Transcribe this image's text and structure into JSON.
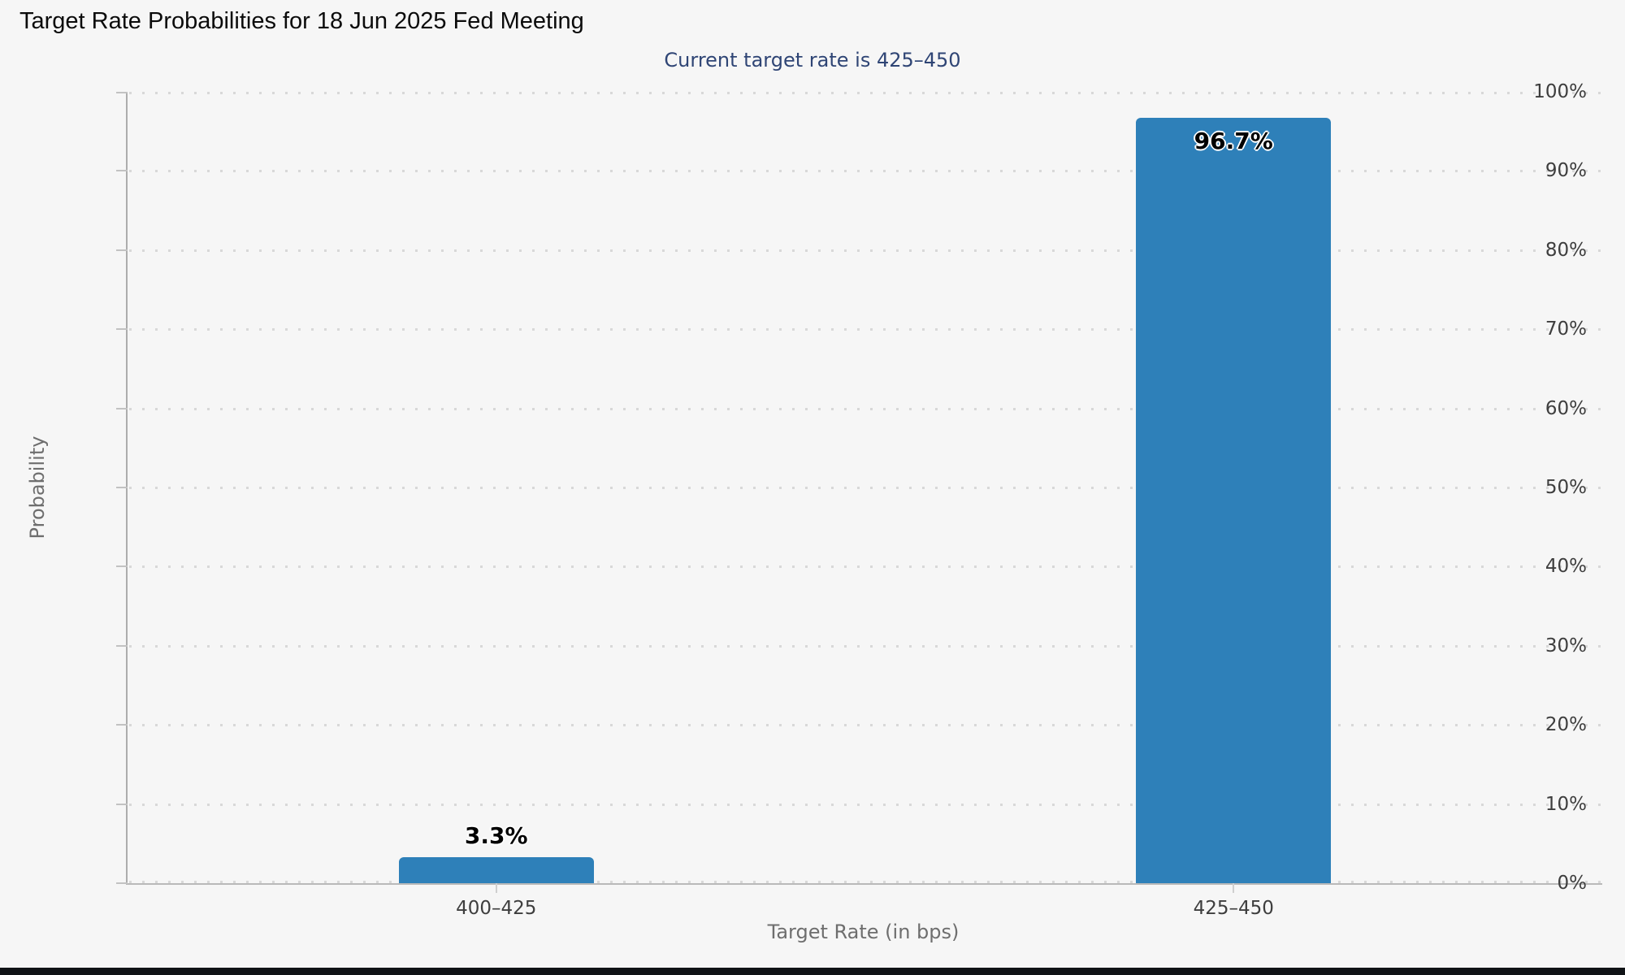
{
  "page": {
    "background": "#f6f6f6",
    "footer_strip_color": "#101316"
  },
  "chart_data": {
    "type": "bar",
    "title": "Target Rate Probabilities for 18 Jun 2025 Fed Meeting",
    "subtitle": "Current target rate is 425–450",
    "xlabel": "Target Rate (in bps)",
    "ylabel": "Probability",
    "categories": [
      "400–425",
      "425–450"
    ],
    "values": [
      3.3,
      96.7
    ],
    "bar_labels": [
      "3.3%",
      "96.7%"
    ],
    "ylim": [
      0,
      100
    ],
    "ytick_step": 10,
    "ytick_labels": [
      "0%",
      "10%",
      "20%",
      "30%",
      "40%",
      "50%",
      "60%",
      "70%",
      "80%",
      "90%",
      "100%"
    ],
    "grid": "horizontal-dotted",
    "legend": "none",
    "colors": {
      "bar": "#2E80B9",
      "title": "#0B0B0B",
      "subtitle": "#2F4575",
      "axis_line": "#ADADAD",
      "grid_dot": "#D8D8D8",
      "tick_label": "#3E3E3E",
      "axis_title": "#6E6E6E",
      "data_label": "#000000"
    }
  }
}
